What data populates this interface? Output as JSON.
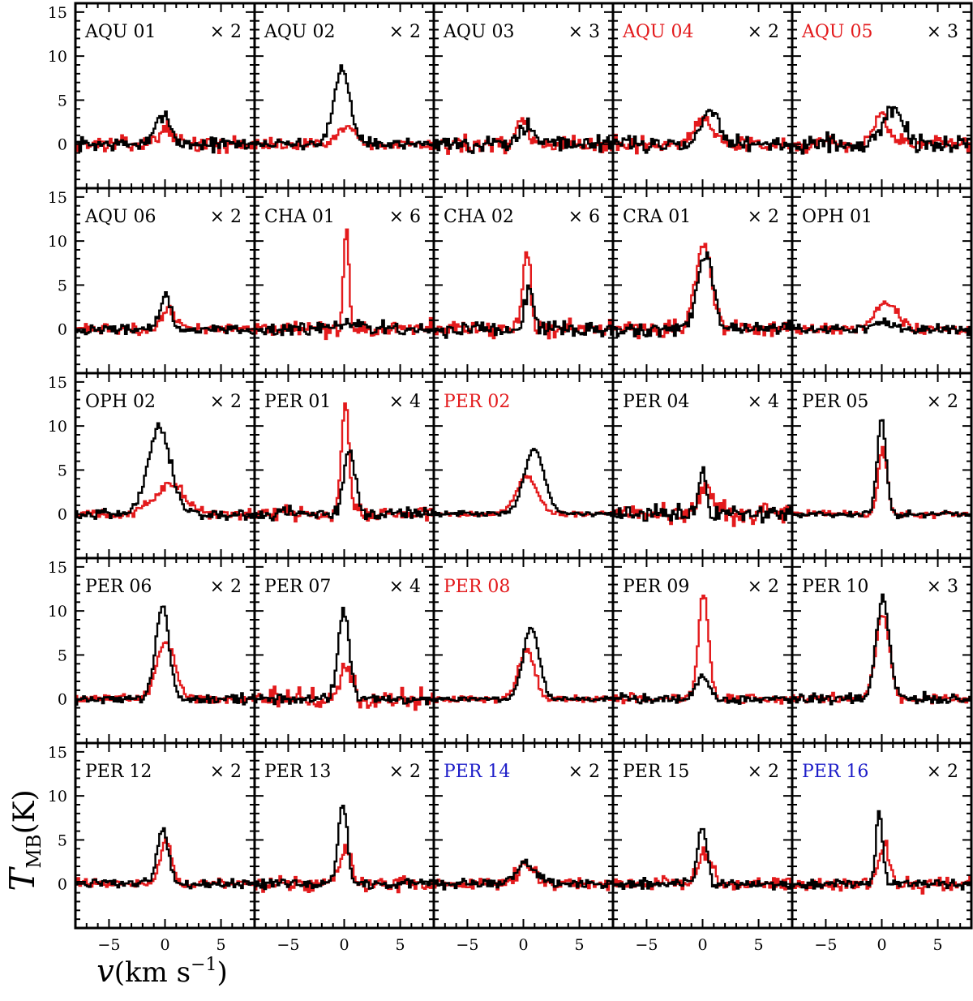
{
  "chart_data": {
    "type": "line",
    "layout": "grid-5x5-small-multiples",
    "xlabel": "v(km s⁻¹)",
    "ylabel": "T_MB(K)",
    "xlabel_parts": {
      "var": "v",
      "open": "(km s",
      "exp": "−1",
      "close": ")"
    },
    "ylabel_parts": {
      "var": "T",
      "sub": "MB",
      "unit": "(K)"
    },
    "xlim": [
      -8,
      8
    ],
    "ylim": [
      -5,
      16
    ],
    "xticks": [
      -5,
      0,
      5
    ],
    "yticks": [
      0,
      5,
      10,
      15
    ],
    "series_styles": [
      {
        "name": "line-1",
        "color": "#000000"
      },
      {
        "name": "line-2",
        "color": "#e31a1c"
      }
    ],
    "label_colors": {
      "black": "#000000",
      "red": "#e31a1c",
      "blue": "#1c1cc8"
    },
    "panels": [
      {
        "name": "AQU 01",
        "multiplier": "× 2",
        "label_color": "black",
        "black": {
          "peak": 3.6,
          "center": -0.2,
          "width": 0.6,
          "noise": 0.8
        },
        "red": {
          "peak": 1.8,
          "center": 0.1,
          "width": 0.7,
          "noise": 0.8
        }
      },
      {
        "name": "AQU 02",
        "multiplier": "× 2",
        "label_color": "black",
        "black": {
          "peak": 8.5,
          "center": -0.3,
          "width": 0.7,
          "noise": 0.6
        },
        "red": {
          "peak": 2.0,
          "center": 0.2,
          "width": 0.8,
          "noise": 0.6
        }
      },
      {
        "name": "AQU 03",
        "multiplier": "× 3",
        "label_color": "black",
        "black": {
          "peak": 2.0,
          "center": 0.3,
          "width": 0.7,
          "noise": 0.9
        },
        "red": {
          "peak": 2.8,
          "center": -0.3,
          "width": 0.5,
          "noise": 0.9
        }
      },
      {
        "name": "AQU 04",
        "multiplier": "× 2",
        "label_color": "red",
        "black": {
          "peak": 4.2,
          "center": 0.6,
          "width": 0.7,
          "noise": 0.8
        },
        "red": {
          "peak": 3.0,
          "center": 0.0,
          "width": 0.8,
          "noise": 0.8
        }
      },
      {
        "name": "AQU 05",
        "multiplier": "× 3",
        "label_color": "red",
        "black": {
          "peak": 4.0,
          "center": 0.9,
          "width": 0.9,
          "noise": 1.0
        },
        "red": {
          "peak": 3.5,
          "center": -0.2,
          "width": 0.6,
          "noise": 0.9
        }
      },
      {
        "name": "AQU 06",
        "multiplier": "× 2",
        "label_color": "black",
        "black": {
          "peak": 3.6,
          "center": 0.0,
          "width": 0.5,
          "noise": 0.6
        },
        "red": {
          "peak": 2.3,
          "center": 0.2,
          "width": 0.6,
          "noise": 0.6
        }
      },
      {
        "name": "CHA 01",
        "multiplier": "× 6",
        "label_color": "black",
        "black": {
          "peak": 0.6,
          "center": 0.0,
          "width": 2.0,
          "noise": 0.7
        },
        "red": {
          "peak": 11.5,
          "center": 0.1,
          "width": 0.25,
          "noise": 0.9
        }
      },
      {
        "name": "CHA 02",
        "multiplier": "× 6",
        "label_color": "black",
        "black": {
          "peak": 4.3,
          "center": 0.4,
          "width": 0.4,
          "noise": 0.9
        },
        "red": {
          "peak": 8.8,
          "center": 0.2,
          "width": 0.35,
          "noise": 1.0
        }
      },
      {
        "name": "CRA 01",
        "multiplier": "× 2",
        "label_color": "black",
        "black": {
          "peak": 8.4,
          "center": 0.2,
          "width": 0.7,
          "noise": 0.8
        },
        "red": {
          "peak": 9.2,
          "center": 0.0,
          "width": 0.7,
          "noise": 0.9
        }
      },
      {
        "name": "OPH 01",
        "multiplier": "",
        "label_color": "black",
        "black": {
          "peak": 0.8,
          "center": 0.0,
          "width": 1.0,
          "noise": 0.5
        },
        "red": {
          "peak": 2.8,
          "center": 0.3,
          "width": 1.0,
          "noise": 0.6
        }
      },
      {
        "name": "OPH 02",
        "multiplier": "× 2",
        "label_color": "black",
        "black": {
          "peak": 9.8,
          "center": -0.6,
          "width": 1.0,
          "noise": 0.6
        },
        "red": {
          "peak": 3.3,
          "center": 0.3,
          "width": 1.4,
          "noise": 0.6
        }
      },
      {
        "name": "PER 01",
        "multiplier": "× 4",
        "label_color": "black",
        "black": {
          "peak": 7.2,
          "center": 0.4,
          "width": 0.5,
          "noise": 0.7
        },
        "red": {
          "peak": 12.0,
          "center": 0.0,
          "width": 0.35,
          "noise": 0.8
        }
      },
      {
        "name": "PER 02",
        "multiplier": "",
        "label_color": "red",
        "black": {
          "peak": 7.3,
          "center": 0.9,
          "width": 0.9,
          "noise": 0.3
        },
        "red": {
          "peak": 4.3,
          "center": 0.2,
          "width": 0.9,
          "noise": 0.3
        }
      },
      {
        "name": "PER 04",
        "multiplier": "× 4",
        "label_color": "black",
        "black": {
          "peak": 5.2,
          "center": -0.1,
          "width": 0.3,
          "noise": 0.9
        },
        "red": {
          "peak": 2.5,
          "center": 0.3,
          "width": 0.7,
          "noise": 1.2
        }
      },
      {
        "name": "PER 05",
        "multiplier": "× 2",
        "label_color": "black",
        "black": {
          "peak": 10.8,
          "center": -0.1,
          "width": 0.4,
          "noise": 0.4
        },
        "red": {
          "peak": 7.5,
          "center": 0.0,
          "width": 0.4,
          "noise": 0.4
        }
      },
      {
        "name": "PER 06",
        "multiplier": "× 2",
        "label_color": "black",
        "black": {
          "peak": 10.5,
          "center": -0.3,
          "width": 0.6,
          "noise": 0.5
        },
        "red": {
          "peak": 6.7,
          "center": 0.0,
          "width": 0.8,
          "noise": 0.5
        }
      },
      {
        "name": "PER 07",
        "multiplier": "× 4",
        "label_color": "black",
        "black": {
          "peak": 10.0,
          "center": -0.1,
          "width": 0.5,
          "noise": 0.6
        },
        "red": {
          "peak": 4.0,
          "center": 0.1,
          "width": 0.5,
          "noise": 1.2
        }
      },
      {
        "name": "PER 08",
        "multiplier": "",
        "label_color": "red",
        "black": {
          "peak": 8.2,
          "center": 0.6,
          "width": 0.7,
          "noise": 0.3
        },
        "red": {
          "peak": 5.7,
          "center": 0.2,
          "width": 0.7,
          "noise": 0.4
        }
      },
      {
        "name": "PER 09",
        "multiplier": "× 2",
        "label_color": "black",
        "black": {
          "peak": 2.5,
          "center": -0.1,
          "width": 0.6,
          "noise": 0.5
        },
        "red": {
          "peak": 12.2,
          "center": 0.0,
          "width": 0.45,
          "noise": 0.5
        }
      },
      {
        "name": "PER 10",
        "multiplier": "× 3",
        "label_color": "black",
        "black": {
          "peak": 11.3,
          "center": 0.0,
          "width": 0.6,
          "noise": 0.6
        },
        "red": {
          "peak": 9.8,
          "center": 0.0,
          "width": 0.6,
          "noise": 0.6
        }
      },
      {
        "name": "PER 12",
        "multiplier": "× 2",
        "label_color": "black",
        "black": {
          "peak": 6.3,
          "center": -0.3,
          "width": 0.5,
          "noise": 0.5
        },
        "red": {
          "peak": 5.0,
          "center": 0.0,
          "width": 0.5,
          "noise": 0.5
        }
      },
      {
        "name": "PER 13",
        "multiplier": "× 2",
        "label_color": "black",
        "black": {
          "peak": 9.0,
          "center": -0.2,
          "width": 0.4,
          "noise": 0.5
        },
        "red": {
          "peak": 4.0,
          "center": 0.1,
          "width": 0.5,
          "noise": 0.8
        }
      },
      {
        "name": "PER 14",
        "multiplier": "× 2",
        "label_color": "blue",
        "black": {
          "peak": 2.6,
          "center": 0.1,
          "width": 0.8,
          "noise": 0.6
        },
        "red": {
          "peak": 2.0,
          "center": 0.3,
          "width": 0.9,
          "noise": 0.8
        }
      },
      {
        "name": "PER 15",
        "multiplier": "× 2",
        "label_color": "black",
        "black": {
          "peak": 6.6,
          "center": -0.1,
          "width": 0.4,
          "noise": 0.6
        },
        "red": {
          "peak": 3.5,
          "center": 0.2,
          "width": 0.6,
          "noise": 0.8
        }
      },
      {
        "name": "PER 16",
        "multiplier": "× 2",
        "label_color": "blue",
        "black": {
          "peak": 8.0,
          "center": -0.3,
          "width": 0.3,
          "noise": 0.5
        },
        "red": {
          "peak": 4.5,
          "center": 0.1,
          "width": 0.5,
          "noise": 0.8
        }
      }
    ]
  }
}
